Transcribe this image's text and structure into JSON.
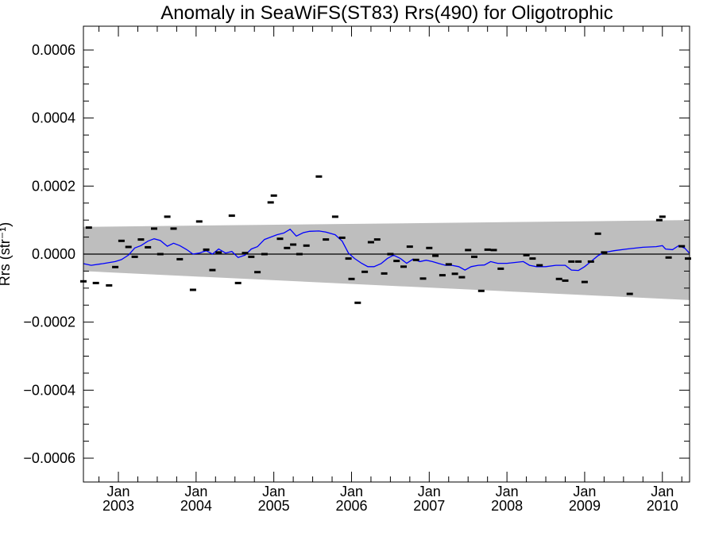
{
  "chart_data": {
    "type": "scatter",
    "title": "Anomaly in SeaWiFS(ST83) Rrs(490) for Oligotrophic",
    "ylabel": "Rrs (str⁻¹)",
    "xlabel": "",
    "xlim": [
      2002.55,
      2010.35
    ],
    "ylim": [
      -0.00067,
      0.00067
    ],
    "y_ticks": [
      {
        "value": 0.0006,
        "label": "0.0006"
      },
      {
        "value": 0.0004,
        "label": "0.0004"
      },
      {
        "value": 0.0002,
        "label": "0.0002"
      },
      {
        "value": 0.0,
        "label": "0.0000"
      },
      {
        "value": -0.0002,
        "label": "−0.0002"
      },
      {
        "value": -0.0004,
        "label": "−0.0004"
      },
      {
        "value": -0.0006,
        "label": "−0.0006"
      }
    ],
    "x_ticks": [
      {
        "value": 2003.0,
        "month": "Jan",
        "year": "2003"
      },
      {
        "value": 2004.0,
        "month": "Jan",
        "year": "2004"
      },
      {
        "value": 2005.0,
        "month": "Jan",
        "year": "2005"
      },
      {
        "value": 2006.0,
        "month": "Jan",
        "year": "2006"
      },
      {
        "value": 2007.0,
        "month": "Jan",
        "year": "2007"
      },
      {
        "value": 2008.0,
        "month": "Jan",
        "year": "2008"
      },
      {
        "value": 2009.0,
        "month": "Jan",
        "year": "2009"
      },
      {
        "value": 2010.0,
        "month": "Jan",
        "year": "2010"
      }
    ],
    "grid": false,
    "zero_line": true,
    "colors": {
      "band": "#bebebe",
      "smooth_line": "#0000ff",
      "points": "#000000",
      "zero_line": "#000000"
    },
    "band": {
      "x": [
        2002.55,
        2010.35
      ],
      "upper": [
        8e-05,
        0.0001
      ],
      "lower": [
        -5e-05,
        -0.000135
      ]
    },
    "series": [
      {
        "kind": "monthly_anomaly_markers",
        "points": [
          {
            "x": 2002.55,
            "y": -8e-05
          },
          {
            "x": 2002.62,
            "y": 7.8e-05
          },
          {
            "x": 2002.71,
            "y": -8.5e-05
          },
          {
            "x": 2002.88,
            "y": -9.2e-05
          },
          {
            "x": 2002.96,
            "y": -3.8e-05
          },
          {
            "x": 2003.04,
            "y": 3.9e-05
          },
          {
            "x": 2003.13,
            "y": 2.1e-05
          },
          {
            "x": 2003.21,
            "y": -8e-06
          },
          {
            "x": 2003.29,
            "y": 4.3e-05
          },
          {
            "x": 2003.38,
            "y": 2e-05
          },
          {
            "x": 2003.46,
            "y": 7.5e-05
          },
          {
            "x": 2003.54,
            "y": 0.0
          },
          {
            "x": 2003.63,
            "y": 0.00011
          },
          {
            "x": 2003.71,
            "y": 7.5e-05
          },
          {
            "x": 2003.79,
            "y": -1.5e-05
          },
          {
            "x": 2003.96,
            "y": -0.000105
          },
          {
            "x": 2004.04,
            "y": 9.6e-05
          },
          {
            "x": 2004.13,
            "y": 1.3e-05
          },
          {
            "x": 2004.21,
            "y": -4.7e-05
          },
          {
            "x": 2004.29,
            "y": 5e-06
          },
          {
            "x": 2004.46,
            "y": 0.000113
          },
          {
            "x": 2004.54,
            "y": -8.5e-05
          },
          {
            "x": 2004.63,
            "y": 3e-06
          },
          {
            "x": 2004.71,
            "y": -8e-06
          },
          {
            "x": 2004.79,
            "y": -5.3e-05
          },
          {
            "x": 2004.88,
            "y": 0.0
          },
          {
            "x": 2004.96,
            "y": 0.000152
          },
          {
            "x": 2005.0,
            "y": 0.000172
          },
          {
            "x": 2005.08,
            "y": 4.5e-05
          },
          {
            "x": 2005.17,
            "y": 1.8e-05
          },
          {
            "x": 2005.25,
            "y": 2.8e-05
          },
          {
            "x": 2005.33,
            "y": 0.0
          },
          {
            "x": 2005.42,
            "y": 2.5e-05
          },
          {
            "x": 2005.58,
            "y": 0.000228
          },
          {
            "x": 2005.67,
            "y": 4.3e-05
          },
          {
            "x": 2005.79,
            "y": 0.00011
          },
          {
            "x": 2005.88,
            "y": 4.8e-05
          },
          {
            "x": 2005.96,
            "y": -1.3e-05
          },
          {
            "x": 2006.0,
            "y": -7.3e-05
          },
          {
            "x": 2006.08,
            "y": -0.000143
          },
          {
            "x": 2006.17,
            "y": -5.2e-05
          },
          {
            "x": 2006.25,
            "y": 3.5e-05
          },
          {
            "x": 2006.33,
            "y": 4.3e-05
          },
          {
            "x": 2006.42,
            "y": -5.7e-05
          },
          {
            "x": 2006.5,
            "y": 0.0
          },
          {
            "x": 2006.58,
            "y": -2e-05
          },
          {
            "x": 2006.67,
            "y": -3.7e-05
          },
          {
            "x": 2006.75,
            "y": 2.2e-05
          },
          {
            "x": 2006.83,
            "y": -1.7e-05
          },
          {
            "x": 2006.92,
            "y": -7.2e-05
          },
          {
            "x": 2007.0,
            "y": 1.8e-05
          },
          {
            "x": 2007.08,
            "y": -5e-06
          },
          {
            "x": 2007.17,
            "y": -6.2e-05
          },
          {
            "x": 2007.25,
            "y": -3e-05
          },
          {
            "x": 2007.33,
            "y": -5.8e-05
          },
          {
            "x": 2007.42,
            "y": -6.8e-05
          },
          {
            "x": 2007.5,
            "y": 1.2e-05
          },
          {
            "x": 2007.58,
            "y": -8e-06
          },
          {
            "x": 2007.67,
            "y": -0.000108
          },
          {
            "x": 2007.75,
            "y": 1.3e-05
          },
          {
            "x": 2007.83,
            "y": 1.2e-05
          },
          {
            "x": 2007.92,
            "y": -4.3e-05
          },
          {
            "x": 2008.25,
            "y": -3e-06
          },
          {
            "x": 2008.33,
            "y": -1.3e-05
          },
          {
            "x": 2008.42,
            "y": -3.3e-05
          },
          {
            "x": 2008.67,
            "y": -7.3e-05
          },
          {
            "x": 2008.75,
            "y": -7.8e-05
          },
          {
            "x": 2008.83,
            "y": -2.2e-05
          },
          {
            "x": 2008.92,
            "y": -2.2e-05
          },
          {
            "x": 2009.0,
            "y": -8.2e-05
          },
          {
            "x": 2009.08,
            "y": -2.2e-05
          },
          {
            "x": 2009.17,
            "y": 6e-05
          },
          {
            "x": 2009.25,
            "y": 5e-06
          },
          {
            "x": 2009.58,
            "y": -0.000117
          },
          {
            "x": 2009.96,
            "y": 0.0001
          },
          {
            "x": 2010.0,
            "y": 0.00011
          },
          {
            "x": 2010.08,
            "y": -1e-05
          },
          {
            "x": 2010.25,
            "y": 2.3e-05
          },
          {
            "x": 2010.33,
            "y": -1.3e-05
          }
        ]
      },
      {
        "kind": "smoothed_line",
        "points": [
          {
            "x": 2002.55,
            "y": -2.8e-05
          },
          {
            "x": 2002.65,
            "y": -3.3e-05
          },
          {
            "x": 2002.8,
            "y": -2.8e-05
          },
          {
            "x": 2002.96,
            "y": -2.2e-05
          },
          {
            "x": 2003.04,
            "y": -1.6e-05
          },
          {
            "x": 2003.13,
            "y": -3e-06
          },
          {
            "x": 2003.21,
            "y": 1.8e-05
          },
          {
            "x": 2003.29,
            "y": 2.5e-05
          },
          {
            "x": 2003.38,
            "y": 3.8e-05
          },
          {
            "x": 2003.46,
            "y": 4.5e-05
          },
          {
            "x": 2003.54,
            "y": 4e-05
          },
          {
            "x": 2003.63,
            "y": 2.3e-05
          },
          {
            "x": 2003.71,
            "y": 3.2e-05
          },
          {
            "x": 2003.79,
            "y": 2.5e-05
          },
          {
            "x": 2003.88,
            "y": 1.3e-05
          },
          {
            "x": 2003.96,
            "y": 0.0
          },
          {
            "x": 2004.04,
            "y": 3e-06
          },
          {
            "x": 2004.13,
            "y": 1e-05
          },
          {
            "x": 2004.21,
            "y": 0.0
          },
          {
            "x": 2004.29,
            "y": 1.5e-05
          },
          {
            "x": 2004.38,
            "y": 3e-06
          },
          {
            "x": 2004.46,
            "y": 8e-06
          },
          {
            "x": 2004.54,
            "y": -1e-05
          },
          {
            "x": 2004.63,
            "y": -3e-06
          },
          {
            "x": 2004.71,
            "y": 1.5e-05
          },
          {
            "x": 2004.79,
            "y": 2.2e-05
          },
          {
            "x": 2004.88,
            "y": 4.3e-05
          },
          {
            "x": 2004.96,
            "y": 5e-05
          },
          {
            "x": 2005.04,
            "y": 5.7e-05
          },
          {
            "x": 2005.13,
            "y": 6.2e-05
          },
          {
            "x": 2005.21,
            "y": 7.3e-05
          },
          {
            "x": 2005.29,
            "y": 5.3e-05
          },
          {
            "x": 2005.38,
            "y": 6.3e-05
          },
          {
            "x": 2005.46,
            "y": 6.7e-05
          },
          {
            "x": 2005.58,
            "y": 6.8e-05
          },
          {
            "x": 2005.67,
            "y": 6.5e-05
          },
          {
            "x": 2005.79,
            "y": 5.7e-05
          },
          {
            "x": 2005.88,
            "y": 3.8e-05
          },
          {
            "x": 2005.96,
            "y": 3e-06
          },
          {
            "x": 2006.04,
            "y": -1.3e-05
          },
          {
            "x": 2006.13,
            "y": -2.7e-05
          },
          {
            "x": 2006.21,
            "y": -3.7e-05
          },
          {
            "x": 2006.29,
            "y": -3.7e-05
          },
          {
            "x": 2006.38,
            "y": -2.8e-05
          },
          {
            "x": 2006.46,
            "y": -1.3e-05
          },
          {
            "x": 2006.54,
            "y": -3e-06
          },
          {
            "x": 2006.63,
            "y": -1.3e-05
          },
          {
            "x": 2006.71,
            "y": -2.7e-05
          },
          {
            "x": 2006.79,
            "y": -1.5e-05
          },
          {
            "x": 2006.88,
            "y": -2.2e-05
          },
          {
            "x": 2006.96,
            "y": -1.8e-05
          },
          {
            "x": 2007.04,
            "y": -2.2e-05
          },
          {
            "x": 2007.13,
            "y": -2.8e-05
          },
          {
            "x": 2007.21,
            "y": -3.3e-05
          },
          {
            "x": 2007.29,
            "y": -3.3e-05
          },
          {
            "x": 2007.38,
            "y": -3.7e-05
          },
          {
            "x": 2007.46,
            "y": -4.7e-05
          },
          {
            "x": 2007.54,
            "y": -3.7e-05
          },
          {
            "x": 2007.63,
            "y": -3.3e-05
          },
          {
            "x": 2007.71,
            "y": -3.2e-05
          },
          {
            "x": 2007.79,
            "y": -2.2e-05
          },
          {
            "x": 2007.88,
            "y": -2.7e-05
          },
          {
            "x": 2008.0,
            "y": -2.7e-05
          },
          {
            "x": 2008.21,
            "y": -2.2e-05
          },
          {
            "x": 2008.29,
            "y": -3.3e-05
          },
          {
            "x": 2008.38,
            "y": -3.7e-05
          },
          {
            "x": 2008.5,
            "y": -3.7e-05
          },
          {
            "x": 2008.63,
            "y": -3.3e-05
          },
          {
            "x": 2008.75,
            "y": -3.3e-05
          },
          {
            "x": 2008.83,
            "y": -4.7e-05
          },
          {
            "x": 2008.92,
            "y": -4.8e-05
          },
          {
            "x": 2009.0,
            "y": -3.7e-05
          },
          {
            "x": 2009.08,
            "y": -2.2e-05
          },
          {
            "x": 2009.17,
            "y": -5e-06
          },
          {
            "x": 2009.25,
            "y": 5e-06
          },
          {
            "x": 2009.38,
            "y": 1e-05
          },
          {
            "x": 2009.54,
            "y": 1.5e-05
          },
          {
            "x": 2009.75,
            "y": 2e-05
          },
          {
            "x": 2009.92,
            "y": 2.2e-05
          },
          {
            "x": 2010.0,
            "y": 2.5e-05
          },
          {
            "x": 2010.04,
            "y": 1.5e-05
          },
          {
            "x": 2010.13,
            "y": 1.3e-05
          },
          {
            "x": 2010.21,
            "y": 2.5e-05
          },
          {
            "x": 2010.29,
            "y": 1.7e-05
          },
          {
            "x": 2010.35,
            "y": 2e-06
          }
        ]
      }
    ]
  }
}
